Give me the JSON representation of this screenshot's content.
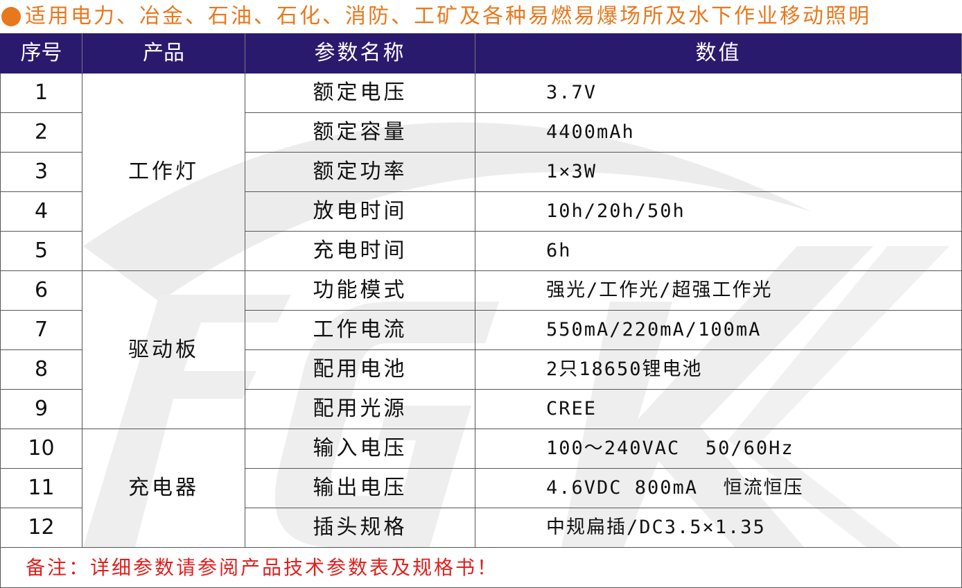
{
  "title": "适用电力、冶金、石油、石化、消防、工矿及各种易燃易爆场所及水下作业移动照明",
  "watermark": "FGK",
  "colors": {
    "header_bg": "#2a1a6e",
    "title": "#e8781e",
    "note": "#e0201e"
  },
  "headers": [
    "序号",
    "产品",
    "参数名称",
    "数值"
  ],
  "groups": [
    "工作灯",
    "驱动板",
    "充电器"
  ],
  "rows": [
    {
      "no": "1",
      "name": "额定电压",
      "value": "3.7V"
    },
    {
      "no": "2",
      "name": "额定容量",
      "value": "4400mAh"
    },
    {
      "no": "3",
      "name": "额定功率",
      "value": "1×3W"
    },
    {
      "no": "4",
      "name": "放电时间",
      "value": "10h/20h/50h"
    },
    {
      "no": "5",
      "name": "充电时间",
      "value": "6h"
    },
    {
      "no": "6",
      "name": "功能模式",
      "value": "强光/工作光/超强工作光"
    },
    {
      "no": "7",
      "name": "工作电流",
      "value": "550mA/220mA/100mA"
    },
    {
      "no": "8",
      "name": "配用电池",
      "value": "2只18650锂电池"
    },
    {
      "no": "9",
      "name": "配用光源",
      "value": "CREE"
    },
    {
      "no": "10",
      "name": "输入电压",
      "value": "100～240VAC  50/60Hz"
    },
    {
      "no": "11",
      "name": "输出电压",
      "value": "4.6VDC 800mA  恒流恒压"
    },
    {
      "no": "12",
      "name": "插头规格",
      "value": "中规扁插/DC3.5×1.35"
    }
  ],
  "note": "备注：详细参数请参阅产品技术参数表及规格书！"
}
